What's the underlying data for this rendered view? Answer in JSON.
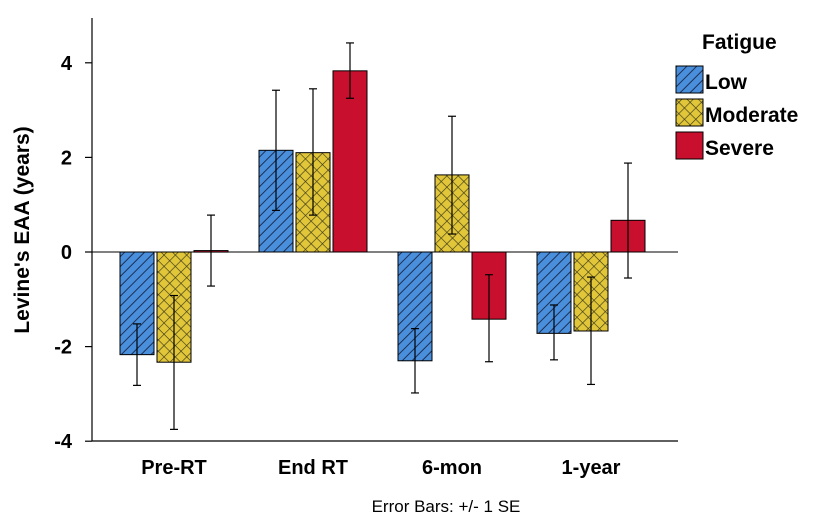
{
  "chart_data": {
    "type": "bar",
    "title": "",
    "xlabel": "",
    "ylabel": "Levine's EAA (years)",
    "ylim": [
      -4.2,
      4.9
    ],
    "yticks": [
      -4,
      -2,
      0,
      2,
      4
    ],
    "categories": [
      "Pre-RT",
      "End RT",
      "6-mon",
      "1-year"
    ],
    "legend": {
      "title": "Fatigue",
      "position": "top-right"
    },
    "series": [
      {
        "name": "Low",
        "color": "#4a8fdc",
        "pattern": "diagonal-lines",
        "values": [
          -2.17,
          2.15,
          -2.3,
          -1.72
        ],
        "error_low": [
          -2.82,
          0.88,
          -2.98,
          -2.28
        ],
        "error_high": [
          -1.52,
          3.42,
          -1.62,
          -1.12
        ]
      },
      {
        "name": "Moderate",
        "color": "#e2c63a",
        "pattern": "crosshatch",
        "values": [
          -2.33,
          2.1,
          1.63,
          -1.67
        ],
        "error_low": [
          -3.75,
          0.78,
          0.38,
          -2.8
        ],
        "error_high": [
          -0.92,
          3.45,
          2.87,
          -0.53
        ]
      },
      {
        "name": "Severe",
        "color": "#c8102e",
        "pattern": "solid",
        "values": [
          0.03,
          3.83,
          -1.42,
          0.67
        ],
        "error_low": [
          -0.72,
          3.25,
          -2.32,
          -0.55
        ],
        "error_high": [
          0.78,
          4.42,
          -0.48,
          1.88
        ]
      }
    ],
    "footnote": "Error Bars: +/- 1 SE"
  }
}
